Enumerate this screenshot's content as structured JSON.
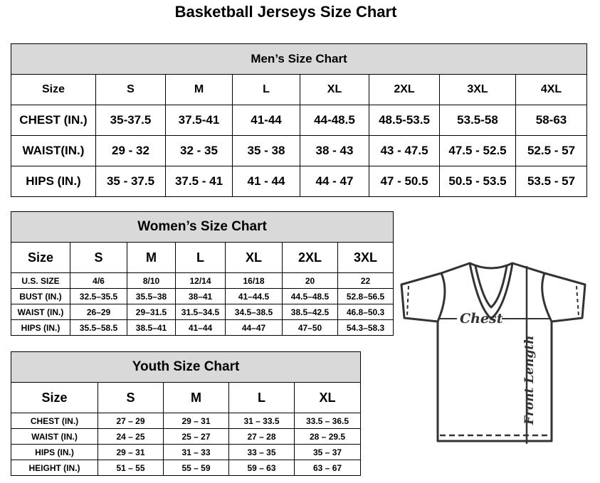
{
  "title": "Basketball Jerseys Size Chart",
  "men": {
    "title": "Men’s Size Chart",
    "headers": [
      "Size",
      "S",
      "M",
      "L",
      "XL",
      "2XL",
      "3XL",
      "4XL"
    ],
    "rows": [
      [
        "CHEST (IN.)",
        "35-37.5",
        "37.5-41",
        "41-44",
        "44-48.5",
        "48.5-53.5",
        "53.5-58",
        "58-63"
      ],
      [
        "WAIST(IN.)",
        "29 - 32",
        "32 - 35",
        "35 - 38",
        "38 - 43",
        "43 - 47.5",
        "47.5 - 52.5",
        "52.5 - 57"
      ],
      [
        "HIPS (IN.)",
        "35 - 37.5",
        "37.5 - 41",
        "41 - 44",
        "44 - 47",
        "47 - 50.5",
        "50.5 - 53.5",
        "53.5 - 57"
      ]
    ]
  },
  "women": {
    "title": "Women’s Size Chart",
    "headers": [
      "Size",
      "S",
      "M",
      "L",
      "XL",
      "2XL",
      "3XL"
    ],
    "rows": [
      [
        "U.S. SIZE",
        "4/6",
        "8/10",
        "12/14",
        "16/18",
        "20",
        "22"
      ],
      [
        "BUST (IN.)",
        "32.5–35.5",
        "35.5–38",
        "38–41",
        "41–44.5",
        "44.5–48.5",
        "52.8–56.5"
      ],
      [
        "WAIST (IN.)",
        "26–29",
        "29–31.5",
        "31.5–34.5",
        "34.5–38.5",
        "38.5–42.5",
        "46.8–50.3"
      ],
      [
        "HIPS (IN.)",
        "35.5–58.5",
        "38.5–41",
        "41–44",
        "44–47",
        "47–50",
        "54.3–58.3"
      ]
    ]
  },
  "youth": {
    "title": "Youth Size Chart",
    "headers": [
      "Size",
      "S",
      "M",
      "L",
      "XL"
    ],
    "rows": [
      [
        "CHEST (IN.)",
        "27 – 29",
        "29 – 31",
        "31 – 33.5",
        "33.5 – 36.5"
      ],
      [
        "WAIST (IN.)",
        "24 – 25",
        "25 – 27",
        "27 – 28",
        "28 – 29.5"
      ],
      [
        "HIPS (IN.)",
        "29 – 31",
        "31 – 33",
        "33 – 35",
        "35 – 37"
      ],
      [
        "HEIGHT (IN.)",
        "51 – 55",
        "55 – 59",
        "59 – 63",
        "63 – 67"
      ]
    ]
  },
  "diagram": {
    "chest_label": "Chest",
    "length_label": "Front Length",
    "icon": "t-shirt-outline"
  }
}
